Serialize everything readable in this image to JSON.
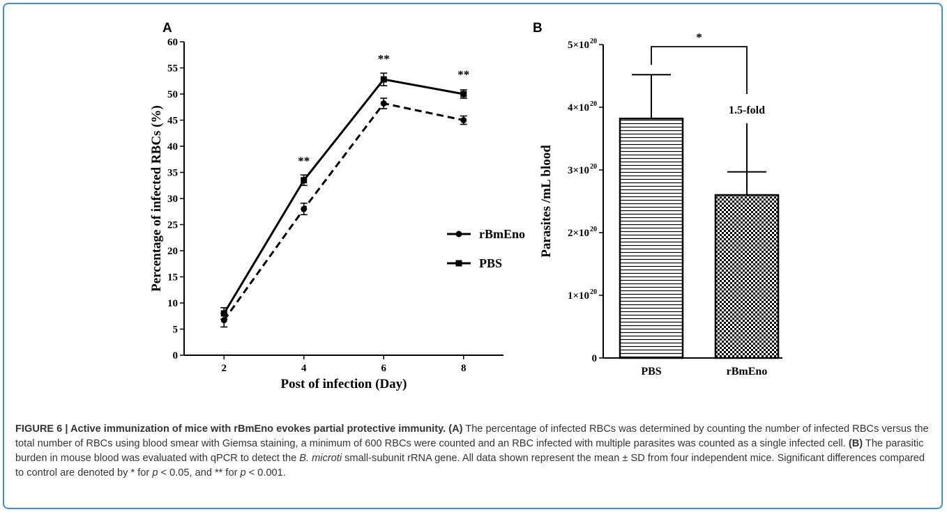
{
  "panels": {
    "a_label": "A",
    "b_label": "B"
  },
  "chart_data": [
    {
      "type": "line",
      "panel": "A",
      "xlabel": "Post of infection (Day)",
      "ylabel": "Percentage of infected RBCs (%)",
      "x": [
        2,
        4,
        6,
        8
      ],
      "xlim": [
        1,
        9
      ],
      "ylim": [
        0,
        60
      ],
      "yticks": [
        0,
        5,
        10,
        15,
        20,
        25,
        30,
        35,
        40,
        45,
        50,
        55,
        60
      ],
      "series": [
        {
          "name": "rBmEno",
          "values": [
            6.7,
            28,
            48.2,
            45
          ],
          "errors": [
            1.3,
            1.1,
            1.0,
            0.8
          ],
          "style": "dashed",
          "marker": "circle"
        },
        {
          "name": "PBS",
          "values": [
            8,
            33.5,
            52.8,
            50
          ],
          "errors": [
            1.1,
            1.0,
            1.2,
            0.8
          ],
          "style": "solid",
          "marker": "square"
        }
      ],
      "annotations": [
        {
          "x": 4,
          "y": 36.5,
          "text": "**"
        },
        {
          "x": 6,
          "y": 56,
          "text": "**"
        },
        {
          "x": 8,
          "y": 53,
          "text": "**"
        }
      ],
      "legend_position": "right",
      "grid": false
    },
    {
      "type": "bar",
      "panel": "B",
      "ylabel": "Parasites /mL blood",
      "categories": [
        "PBS",
        "rBmEno"
      ],
      "values": [
        3.82e+20,
        2.6e+20
      ],
      "errors": [
        7e+19,
        3.7e+19
      ],
      "ylim": [
        0,
        5e+20
      ],
      "yticks": [
        {
          "value": 0,
          "mantissa": "0",
          "exp": ""
        },
        {
          "value": 1e+20,
          "mantissa": "1×10",
          "exp": "20"
        },
        {
          "value": 2e+20,
          "mantissa": "2×10",
          "exp": "20"
        },
        {
          "value": 3e+20,
          "mantissa": "3×10",
          "exp": "20"
        },
        {
          "value": 4e+20,
          "mantissa": "4×10",
          "exp": "20"
        },
        {
          "value": 5e+20,
          "mantissa": "5×10",
          "exp": "20"
        }
      ],
      "fills": [
        "horizontal-lines",
        "checkerboard"
      ],
      "significance": {
        "text": "*",
        "bracket_y": 5e+20
      },
      "fold_annotation": {
        "text": "1.5-fold",
        "value": 3.9e+20
      },
      "grid": false
    }
  ],
  "caption": {
    "figure_label": "FIGURE 6 | Active immunization of mice with rBmEno evokes partial protective immunity.",
    "a_marker": "(A)",
    "a_text": " The percentage of infected RBCs was determined by counting the number of infected RBCs versus the total number of RBCs using blood smear with Giemsa staining, a minimum of 600 RBCs were counted and an RBC infected with multiple parasites was counted as a single infected cell. ",
    "b_marker": "(B)",
    "b_text": " The parasitic burden in mouse blood was evaluated with qPCR to detect the ",
    "species": "B. microti",
    "b_text2": " small-subunit rRNA gene. All data shown represent the mean ± SD from four independent mice. Significant differences compared to control are denoted by * for ",
    "p1": "p",
    "p1_text": " < 0.05, and ** for ",
    "p2": "p",
    "p2_text": " < 0.001."
  }
}
